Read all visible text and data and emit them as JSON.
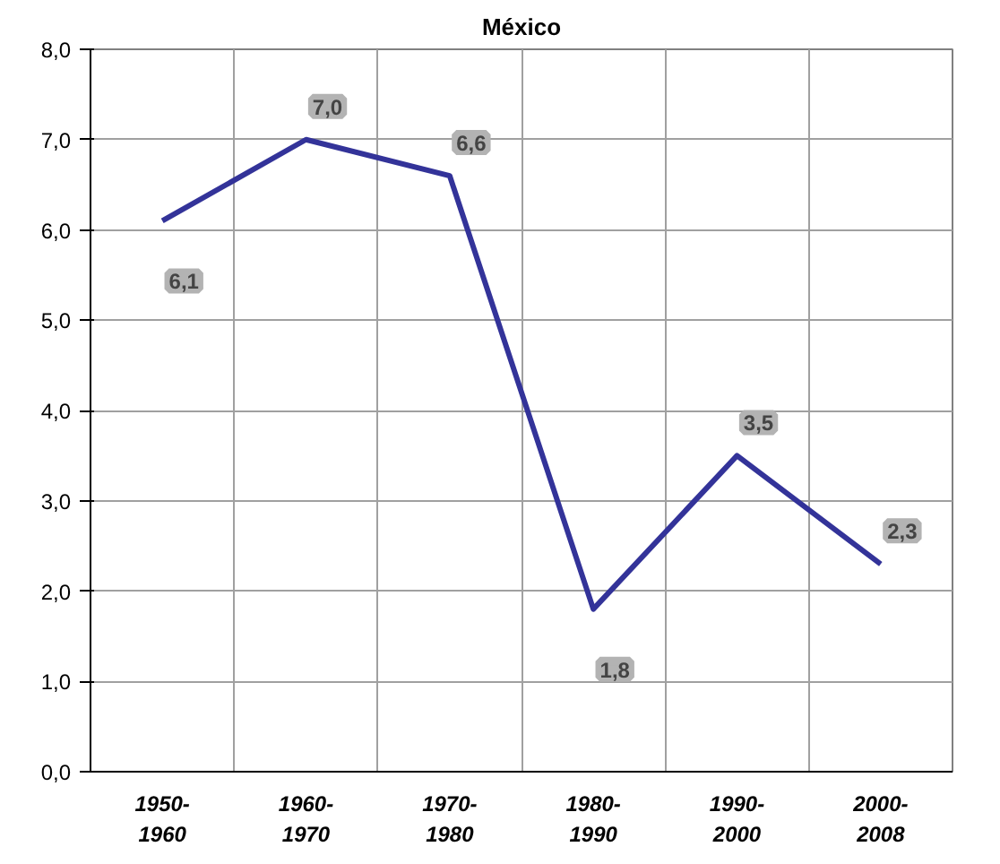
{
  "chart_data": {
    "type": "line",
    "title": "México",
    "categories": [
      "1950-\n1960",
      "1960-\n1970",
      "1970-\n1980",
      "1980-\n1990",
      "1990-\n2000",
      "2000-\n2008"
    ],
    "series": [
      {
        "color": "#333399",
        "values": [
          6.1,
          7.0,
          6.6,
          1.8,
          3.5,
          2.3
        ]
      }
    ],
    "value_labels": [
      "6,1",
      "7,0",
      "6,6",
      "1,8",
      "3,5",
      "2,3"
    ],
    "ylim": [
      0,
      8
    ],
    "yticks": [
      {
        "value": 0,
        "label": "0,0"
      },
      {
        "value": 1,
        "label": "1,0"
      },
      {
        "value": 2,
        "label": "2,0"
      },
      {
        "value": 3,
        "label": "3,0"
      },
      {
        "value": 4,
        "label": "4,0"
      },
      {
        "value": 5,
        "label": "5,0"
      },
      {
        "value": 6,
        "label": "6,0"
      },
      {
        "value": 7,
        "label": "7,0"
      },
      {
        "value": 8,
        "label": "8,0"
      }
    ],
    "grid": true,
    "marker": "none",
    "line_style": "solid"
  }
}
